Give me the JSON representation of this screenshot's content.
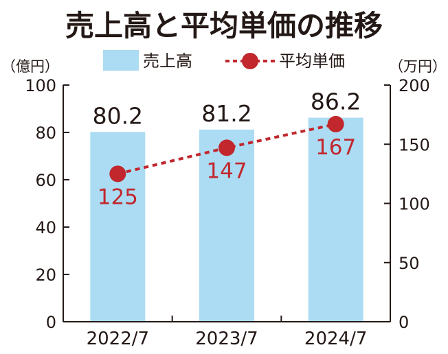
{
  "chart_data": {
    "type": "bar",
    "title": "売上高と平均単価の推移",
    "categories": [
      "2022/7",
      "2023/7",
      "2024/7"
    ],
    "series": [
      {
        "name": "売上高",
        "kind": "bar",
        "axis": "left",
        "color": "#abdcf3",
        "values": [
          80.2,
          81.2,
          86.2
        ],
        "labels": [
          "80.2",
          "81.2",
          "86.2"
        ]
      },
      {
        "name": "平均単価",
        "kind": "line",
        "axis": "right",
        "color": "#c1272d",
        "values": [
          125,
          147,
          167
        ],
        "labels": [
          "125",
          "147",
          "167"
        ]
      }
    ],
    "left_axis": {
      "unit": "（億円）",
      "range": [
        0,
        100
      ],
      "ticks": [
        0,
        20,
        40,
        60,
        80,
        100
      ],
      "tick_labels": [
        "0",
        "20",
        "40",
        "60",
        "80",
        "100"
      ]
    },
    "right_axis": {
      "unit": "（万円）",
      "range": [
        0,
        200
      ],
      "ticks": [
        0,
        50,
        100,
        150,
        200
      ],
      "tick_labels": [
        "0",
        "50",
        "100",
        "150",
        "200"
      ]
    },
    "legend": {
      "position": "top-center",
      "entries": [
        "売上高",
        "平均単価"
      ]
    },
    "grid": false
  }
}
